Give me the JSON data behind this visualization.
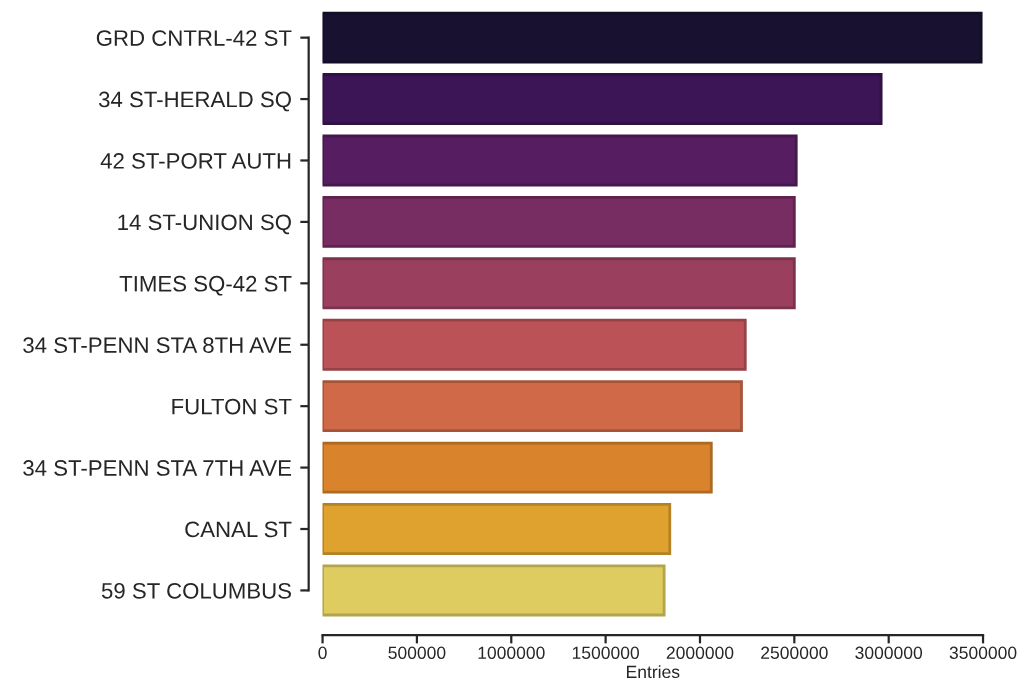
{
  "chart_data": {
    "type": "bar",
    "orientation": "horizontal",
    "xlabel": "Entries",
    "categories": [
      "GRD CNTRL-42 ST",
      "34 ST-HERALD SQ",
      "42 ST-PORT AUTH",
      "14 ST-UNION SQ",
      "TIMES SQ-42 ST",
      "34 ST-PENN STA 8TH AVE",
      "FULTON ST",
      "34 ST-PENN STA 7TH AVE",
      "CANAL ST",
      "59 ST COLUMBUS"
    ],
    "values": [
      3490000,
      2960000,
      2510000,
      2500000,
      2500000,
      2240000,
      2220000,
      2060000,
      1840000,
      1810000
    ],
    "colors": [
      "#181130",
      "#3b1556",
      "#561e60",
      "#772c62",
      "#9a405e",
      "#bb5257",
      "#d06947",
      "#d9832c",
      "#e0a22f",
      "#dfcc60"
    ],
    "xlim": [
      0,
      3500000
    ],
    "xticks": [
      0,
      500000,
      1000000,
      1500000,
      2000000,
      2500000,
      3000000,
      3500000
    ],
    "grid": false,
    "legend": false
  }
}
